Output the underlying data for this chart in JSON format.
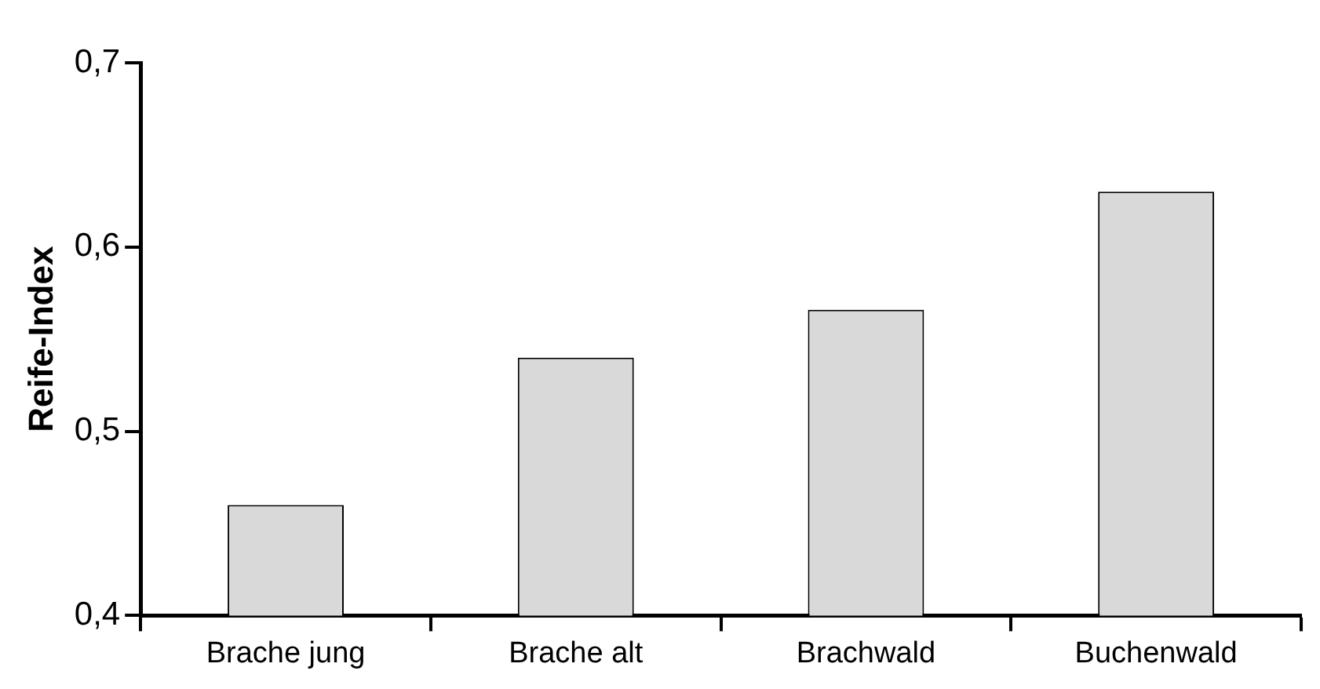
{
  "chart_data": {
    "type": "bar",
    "ylabel": "Reife-Index",
    "categories": [
      "Brache jung",
      "Brache alt",
      "Brachwald",
      "Buchenwald"
    ],
    "values": [
      0.46,
      0.54,
      0.566,
      0.63
    ],
    "color": "#d9d9d9",
    "ylim": [
      0.4,
      0.7
    ],
    "yticks": [
      {
        "value": 0.4,
        "label": "0,4"
      },
      {
        "value": 0.5,
        "label": "0,5"
      },
      {
        "value": 0.6,
        "label": "0,6"
      },
      {
        "value": 0.7,
        "label": "0,7"
      }
    ],
    "grid": false
  }
}
